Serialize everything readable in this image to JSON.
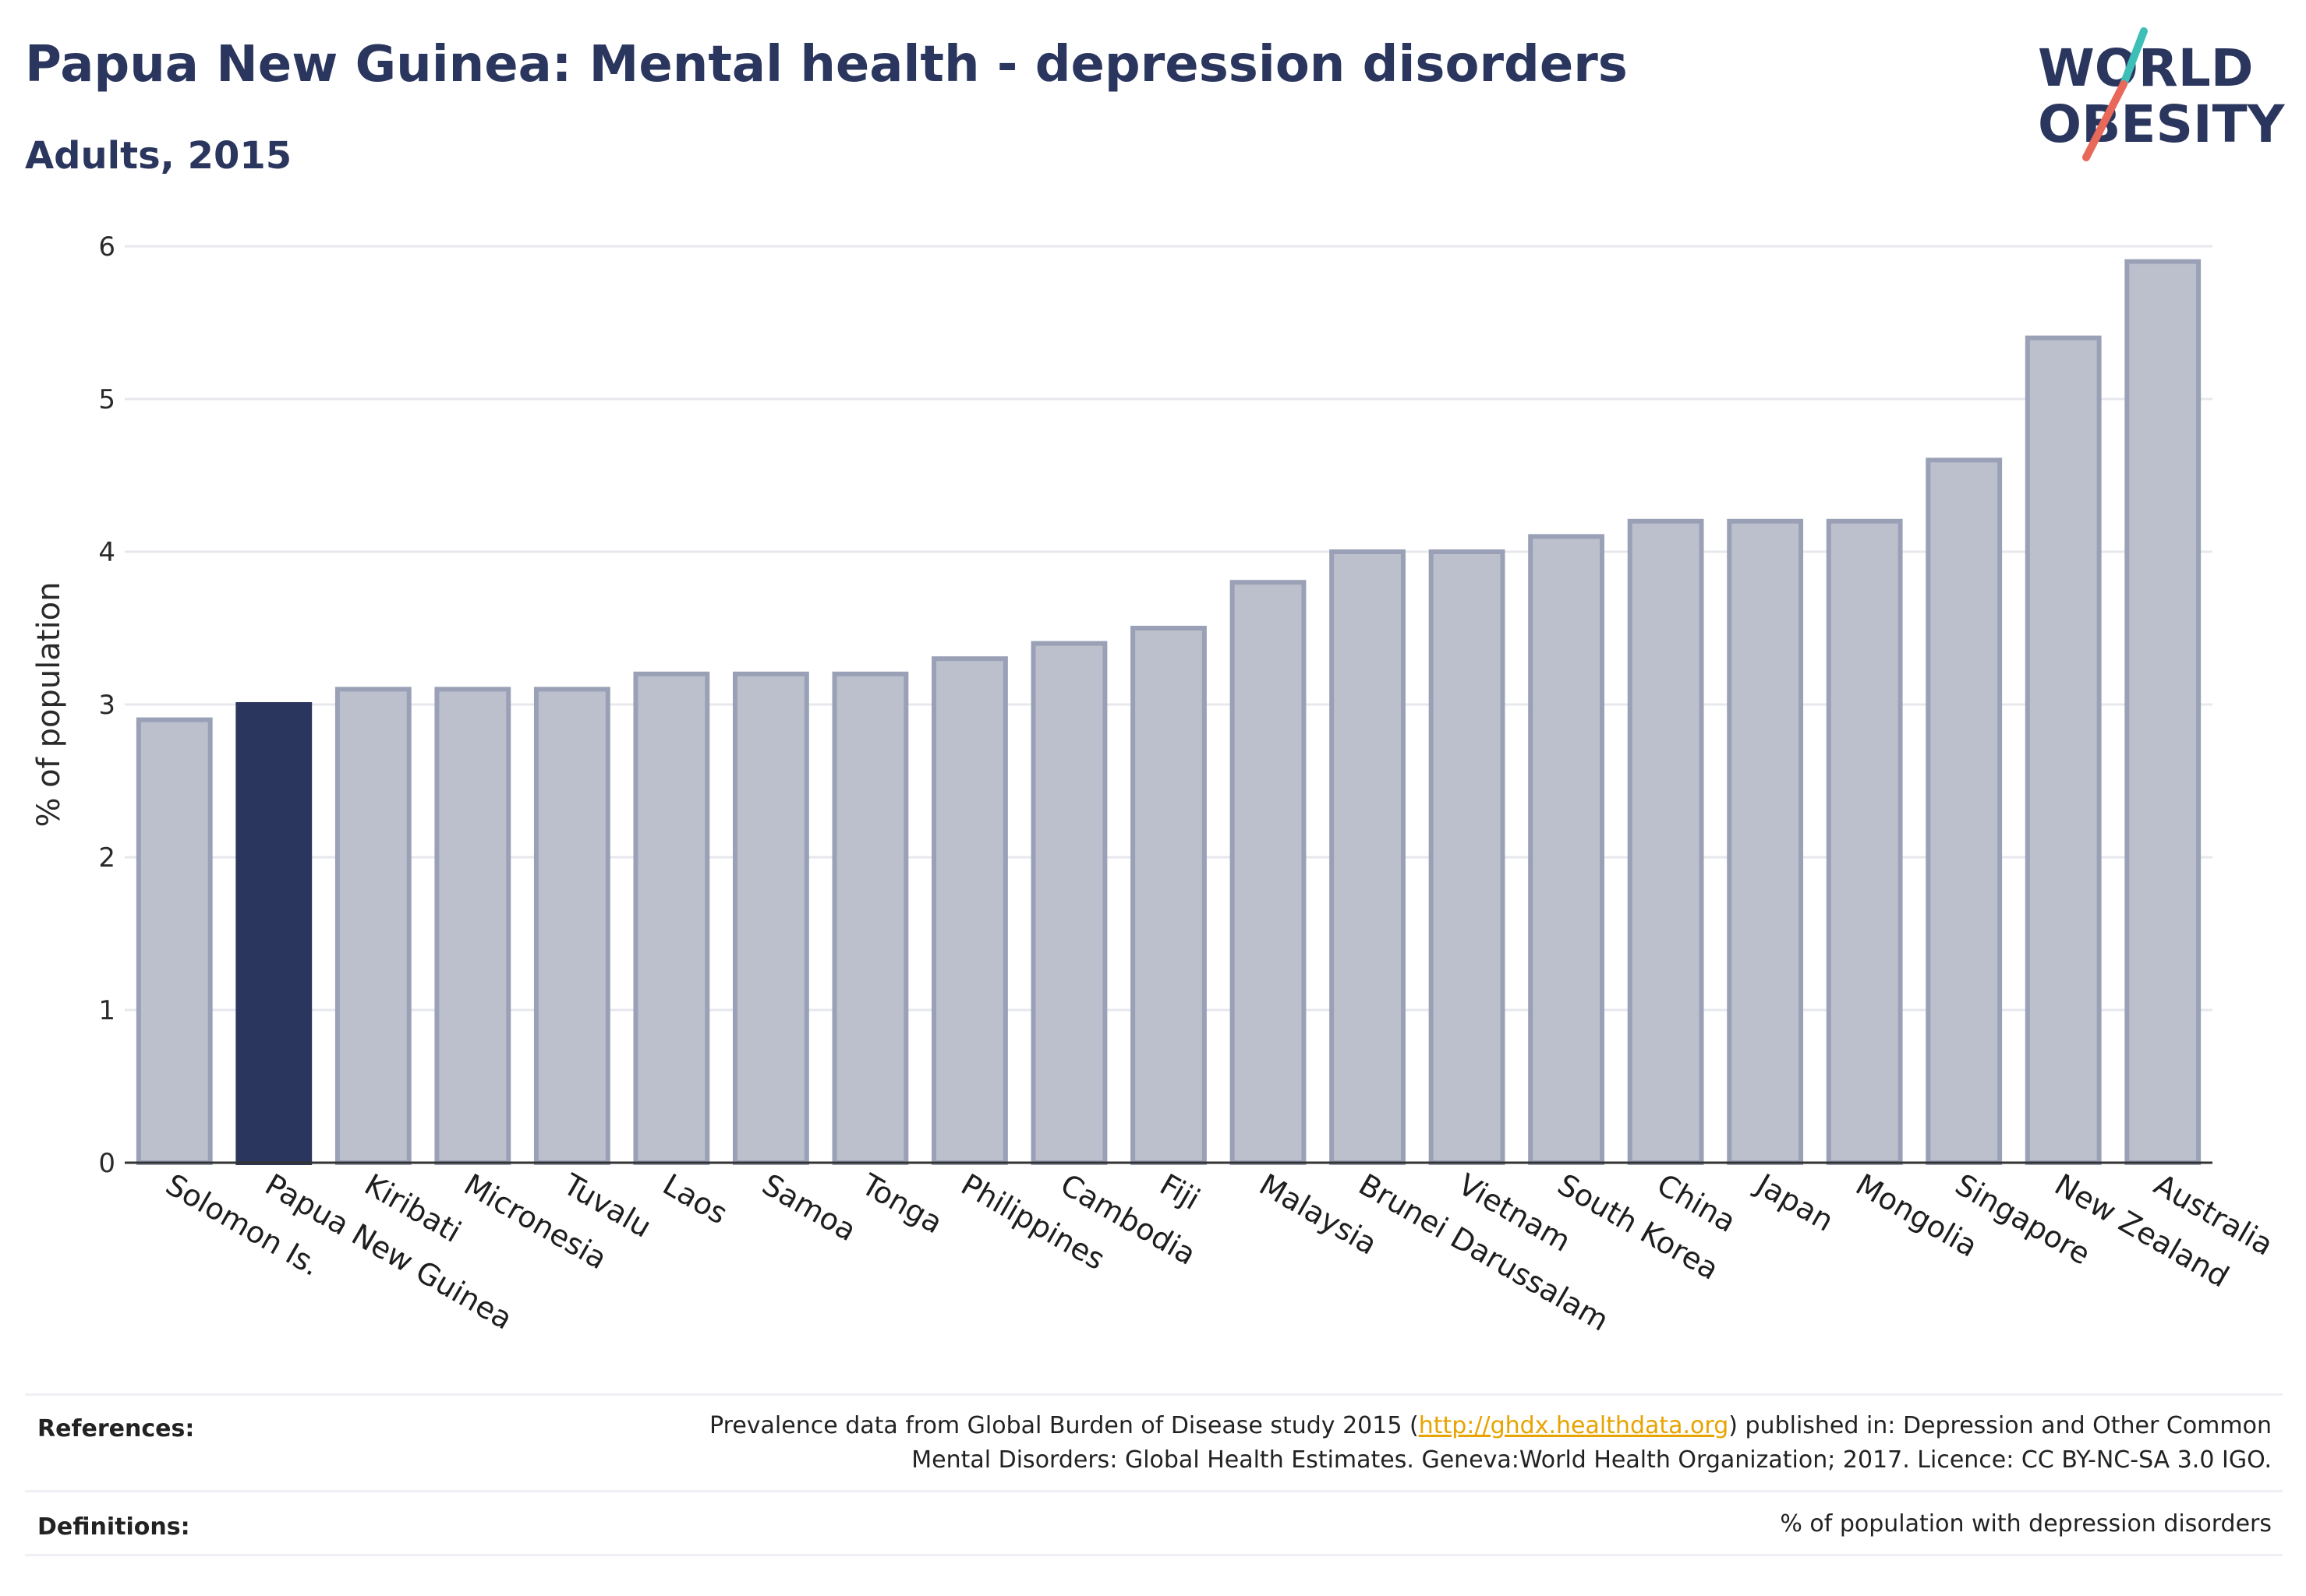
{
  "header": {
    "title": "Papua New Guinea: Mental health - depression disorders",
    "subtitle": "Adults, 2015"
  },
  "logo": {
    "line1": "WORLD",
    "line2": "OBESITY",
    "colors": {
      "text": "#2b365e",
      "slash_teal": "#3dbfb8",
      "slash_coral": "#e8685a"
    }
  },
  "chart_data": {
    "type": "bar",
    "title": "",
    "xlabel": "",
    "ylabel": "% of population",
    "ylim": [
      0,
      6
    ],
    "yticks": [
      0,
      1,
      2,
      3,
      4,
      5,
      6
    ],
    "grid": true,
    "highlight": "Papua New Guinea",
    "colors": {
      "bar": "#bcc0cd",
      "bar_border": "#9aa0b6",
      "highlight": "#2b365e",
      "grid": "#e6e8ee",
      "axis": "#333333"
    },
    "categories": [
      "Solomon Is.",
      "Papua New Guinea",
      "Kiribati",
      "Micronesia",
      "Tuvalu",
      "Laos",
      "Samoa",
      "Tonga",
      "Philippines",
      "Cambodia",
      "Fiji",
      "Malaysia",
      "Brunei Darussalam",
      "Vietnam",
      "South Korea",
      "China",
      "Japan",
      "Mongolia",
      "Singapore",
      "New Zealand",
      "Australia"
    ],
    "values": [
      2.9,
      3.0,
      3.1,
      3.1,
      3.1,
      3.2,
      3.2,
      3.2,
      3.3,
      3.4,
      3.5,
      3.8,
      4.0,
      4.0,
      4.1,
      4.2,
      4.2,
      4.2,
      4.6,
      5.4,
      5.9
    ]
  },
  "footer": {
    "references_label": "References:",
    "references_pre": "Prevalence data from Global Burden of Disease study 2015 (",
    "references_link": "http://ghdx.healthdata.org",
    "references_post": ") published in: Depression and Other Common",
    "references_line2": "Mental Disorders: Global Health Estimates. Geneva:World Health Organization; 2017. Licence: CC BY-NC-SA 3.0 IGO.",
    "definitions_label": "Definitions:",
    "definitions_text": "% of population with depression disorders"
  }
}
